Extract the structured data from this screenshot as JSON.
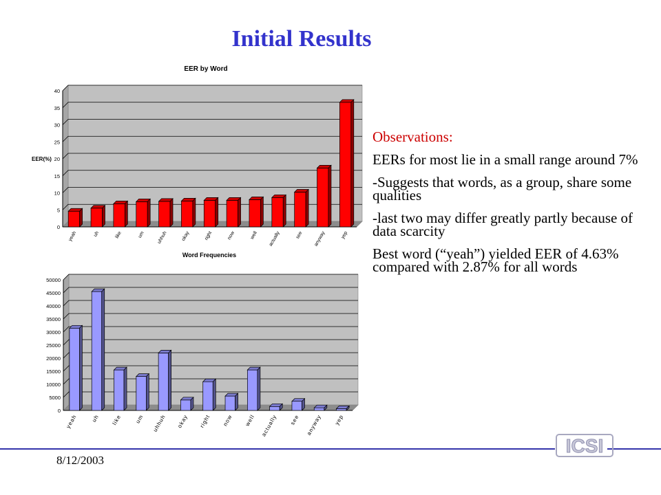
{
  "slide": {
    "title": "Initial Results",
    "date": "8/12/2003",
    "logo_text": "ICSI"
  },
  "observations": {
    "heading": "Observations:",
    "items": [
      "EERs for most lie in a small range around 7%",
      "-Suggests that words, as a group, share some qualities",
      "-last two may differ greatly partly because of data scarcity",
      "Best word (“yeah”) yielded EER of 4.63% compared with 2.87% for all words"
    ]
  },
  "colors": {
    "title": "#3333cc",
    "observations_heading": "#cc0000",
    "bar_eer": "#ff0000",
    "bar_freq": "#9999ff",
    "plot_background": "#c0c0c0",
    "footer_line": "#3333aa"
  },
  "chart_data": [
    {
      "type": "bar",
      "title": "EER by Word",
      "xlabel": "Word Frequencies",
      "ylabel": "EER(%)",
      "categories": [
        "yeah",
        "uh",
        "like",
        "um",
        "uhhuh",
        "okay",
        "right",
        "now",
        "well",
        "actually",
        "see",
        "anyway",
        "yep"
      ],
      "values": [
        4.6,
        5.5,
        6.8,
        7.4,
        7.5,
        7.6,
        7.8,
        7.8,
        8.0,
        8.6,
        10.2,
        17.3,
        36.6
      ],
      "ylim": [
        0,
        40
      ],
      "yticks": [
        "0",
        "5",
        "10",
        "15",
        "20",
        "25",
        "30",
        "35",
        "40"
      ],
      "grid": true,
      "legend": "none"
    },
    {
      "type": "bar",
      "title": "",
      "xlabel": "",
      "ylabel": "",
      "categories": [
        "yeah",
        "uh",
        "like",
        "um",
        "uhhuh",
        "okay",
        "right",
        "now",
        "well",
        "actually",
        "see",
        "anyway",
        "yep"
      ],
      "values": [
        31500,
        45500,
        15500,
        13000,
        22000,
        4000,
        11000,
        5500,
        15500,
        1500,
        3500,
        1000,
        700
      ],
      "ylim": [
        0,
        50000
      ],
      "yticks": [
        "0",
        "5000",
        "10000",
        "15000",
        "20000",
        "25000",
        "30000",
        "35000",
        "40000",
        "45000",
        "50000"
      ],
      "grid": true,
      "legend": "none"
    }
  ]
}
